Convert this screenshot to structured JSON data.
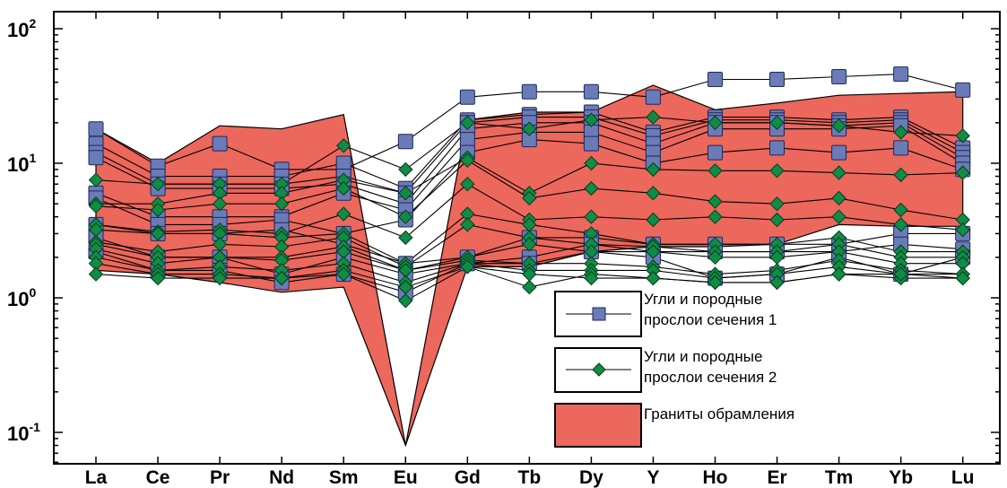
{
  "chart_data": {
    "type": "line",
    "yscale": "log",
    "ylim": [
      0.07,
      100
    ],
    "yticks": [
      {
        "base": "10",
        "exp": "-1"
      },
      {
        "base": "10",
        "exp": "0"
      },
      {
        "base": "10",
        "exp": "1"
      },
      {
        "base": "10",
        "exp": "2"
      }
    ],
    "categories": [
      "La",
      "Ce",
      "Pr",
      "Nd",
      "Sm",
      "Eu",
      "Gd",
      "Tb",
      "Dy",
      "Y",
      "Ho",
      "Er",
      "Tm",
      "Yb",
      "Lu"
    ],
    "colors": {
      "square_fill": "#6a7bb8",
      "diamond_fill": "#0f8c45",
      "granite_fill": "#ec675c",
      "line": "#000000"
    },
    "granite_range": {
      "name": "Граниты обрамления",
      "upper": [
        18,
        10,
        19,
        18,
        23,
        0.08,
        21,
        24,
        24,
        38,
        25,
        28,
        32,
        33,
        34
      ],
      "lower": [
        1.6,
        1.5,
        1.3,
        1.1,
        1.2,
        0.08,
        1.7,
        1.7,
        2.2,
        2.4,
        2.4,
        2.5,
        3.5,
        3.4,
        3.4
      ]
    },
    "series_group_1": {
      "name_line1": "Угли и породные",
      "name_line2": "прослои сечения 1",
      "series": [
        {
          "values": [
            18,
            9.5,
            14,
            9,
            9,
            14.5,
            31,
            34,
            34,
            31,
            42,
            42,
            44,
            46,
            35
          ]
        },
        {
          "values": [
            14,
            8,
            8,
            8,
            10,
            6.5,
            21,
            23,
            24,
            17,
            22,
            22,
            21,
            22,
            13
          ]
        },
        {
          "values": [
            12,
            7,
            7,
            7,
            8,
            6,
            20,
            22,
            22,
            16,
            21,
            21,
            20,
            21,
            12
          ]
        },
        {
          "values": [
            11,
            6.5,
            6.5,
            6.5,
            7,
            5,
            18,
            20,
            20,
            14,
            20,
            20,
            19,
            20,
            11
          ]
        },
        {
          "values": [
            6,
            4,
            4,
            4,
            6,
            4.5,
            15,
            17,
            17,
            12,
            18,
            18,
            18,
            19,
            10
          ]
        },
        {
          "values": [
            5.5,
            3.5,
            3.5,
            3.8,
            3,
            3.8,
            12,
            15,
            14,
            10,
            12,
            13,
            12,
            13,
            9
          ]
        },
        {
          "values": [
            3.5,
            3,
            3,
            3.2,
            2.5,
            1.8,
            2,
            2.8,
            2.8,
            2.5,
            2.5,
            2.5,
            2.5,
            3,
            3
          ]
        },
        {
          "values": [
            2.8,
            2,
            2,
            1.5,
            2,
            1.5,
            1.8,
            2,
            2.5,
            2.2,
            2.2,
            2.2,
            2.2,
            2.5,
            2.3
          ]
        },
        {
          "values": [
            2.2,
            1.6,
            1.6,
            1.3,
            1.5,
            1.1,
            1.8,
            1.8,
            2.2,
            2,
            1.4,
            1.5,
            2,
            1.5,
            2
          ]
        }
      ]
    },
    "series_group_2": {
      "name_line1": "Угли и породные",
      "name_line2": "прослои сечения 2",
      "series": [
        {
          "values": [
            7.5,
            7,
            7,
            7,
            13.5,
            9,
            20,
            18,
            21,
            22,
            20,
            20,
            19,
            17,
            16
          ]
        },
        {
          "values": [
            5,
            5,
            6,
            6,
            7.5,
            6,
            11,
            6,
            10,
            9,
            8.8,
            8.8,
            8.5,
            8.2,
            8.5
          ]
        },
        {
          "values": [
            4.8,
            4.5,
            5,
            5,
            6.5,
            4,
            10.5,
            5.5,
            6.5,
            6,
            5.2,
            5,
            5.5,
            4.5,
            3.8
          ]
        },
        {
          "values": [
            3.5,
            3.1,
            3.2,
            3,
            4.2,
            2.8,
            7,
            3.8,
            4,
            3.8,
            4,
            3.8,
            4,
            3.5,
            3.2
          ]
        },
        {
          "values": [
            3.2,
            3,
            3,
            2.8,
            3,
            1.8,
            4.2,
            3.5,
            3,
            2.5,
            2.5,
            2.5,
            2.8,
            2.2,
            2.2
          ]
        },
        {
          "values": [
            2.6,
            2.2,
            2.5,
            2.4,
            2.8,
            1.7,
            3.5,
            2.8,
            2.5,
            2.4,
            2.2,
            2.2,
            2.5,
            2,
            2
          ]
        },
        {
          "values": [
            2.5,
            2,
            2,
            2,
            2.4,
            1.6,
            2,
            2.5,
            2.2,
            2.2,
            2,
            2,
            2.2,
            1.8,
            1.8
          ]
        },
        {
          "values": [
            2.3,
            1.8,
            2,
            1.9,
            2.2,
            1.6,
            1.9,
            1.8,
            1.8,
            1.7,
            1.5,
            1.6,
            1.9,
            1.6,
            1.5
          ]
        },
        {
          "values": [
            2,
            1.6,
            1.7,
            1.6,
            1.8,
            1.3,
            1.8,
            1.6,
            1.6,
            1.6,
            1.4,
            1.5,
            1.7,
            1.5,
            1.5
          ]
        },
        {
          "values": [
            1.8,
            1.5,
            1.5,
            1.4,
            1.6,
            1.2,
            1.7,
            1.2,
            1.5,
            1.4,
            1.3,
            1.3,
            1.5,
            1.4,
            1.4
          ]
        },
        {
          "values": [
            1.5,
            1.4,
            1.4,
            1.4,
            1.5,
            0.95,
            1.7,
            1.5,
            1.4,
            1.4,
            1.3,
            1.3,
            1.5,
            1.5,
            1.4
          ]
        }
      ]
    }
  }
}
